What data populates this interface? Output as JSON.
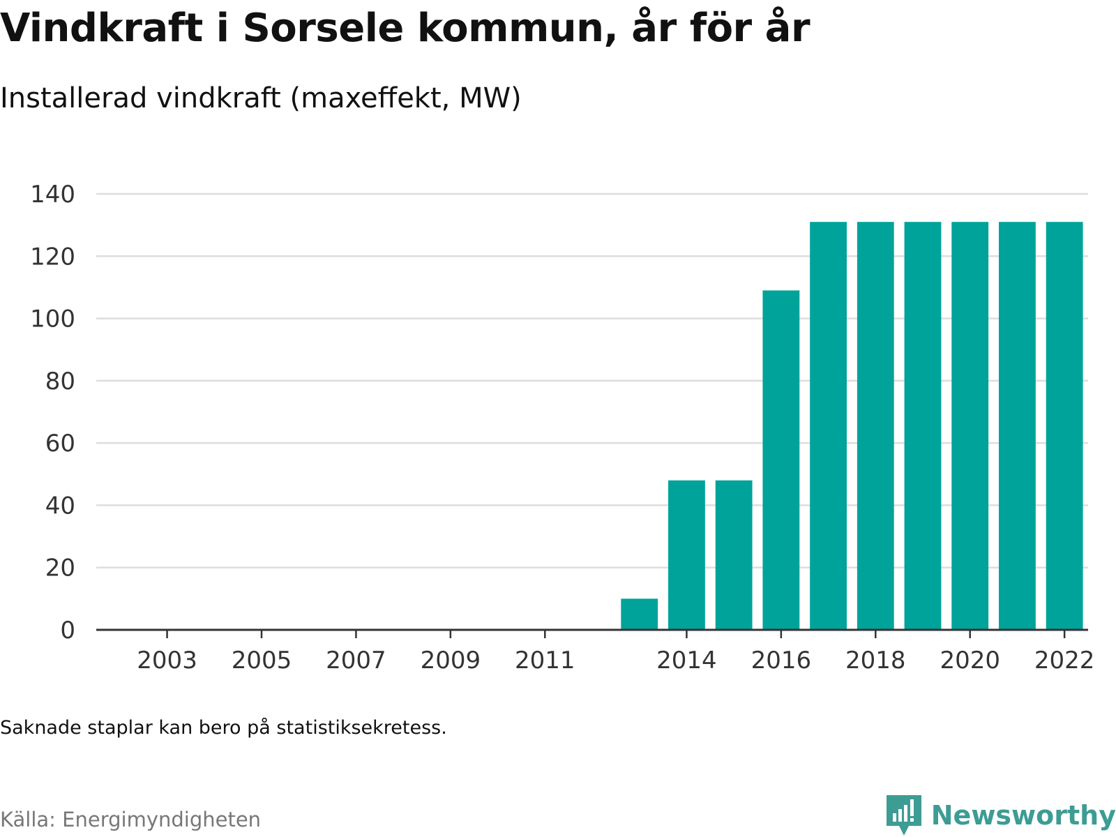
{
  "title": "Vindkraft i Sorsele kommun, år för år",
  "subtitle": "Installerad vindkraft (maxeffekt, MW)",
  "note": "Saknade staplar kan bero på statistiksekretess.",
  "source": "Källa: Energimyndigheten",
  "brand": "Newsworthy",
  "colors": {
    "bar": "#00a39a",
    "grid": "#dddddd",
    "axis": "#333333",
    "brand": "#3d9c94"
  },
  "icons": {
    "brand_logo": "bar-chart-speech-bubble-icon"
  },
  "chart_data": {
    "type": "bar",
    "title": "Vindkraft i Sorsele kommun, år för år",
    "subtitle": "Installerad vindkraft (maxeffekt, MW)",
    "xlabel": "",
    "ylabel": "",
    "ylim": [
      0,
      140
    ],
    "yticks": [
      0,
      20,
      40,
      60,
      80,
      100,
      120,
      140
    ],
    "grid": true,
    "x_tick_labels": [
      "2003",
      "2005",
      "2007",
      "2009",
      "2011",
      "2014",
      "2016",
      "2018",
      "2020",
      "2022"
    ],
    "categories": [
      "2002",
      "2003",
      "2004",
      "2005",
      "2006",
      "2007",
      "2008",
      "2009",
      "2010",
      "2011",
      "2012",
      "2013",
      "2014",
      "2015",
      "2016",
      "2017",
      "2018",
      "2019",
      "2020",
      "2021",
      "2022"
    ],
    "values": [
      null,
      null,
      null,
      null,
      null,
      null,
      null,
      null,
      null,
      null,
      null,
      10,
      48,
      48,
      109,
      131,
      131,
      131,
      131,
      131,
      131
    ]
  }
}
